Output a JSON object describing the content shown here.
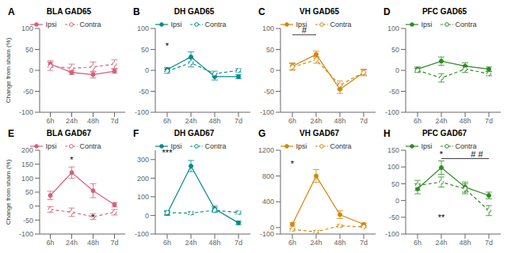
{
  "chart_data": [
    {
      "type": "line",
      "panel_label": "A",
      "title": "BLA GAD65",
      "y_label": "Change from sham (%)",
      "categories": [
        "6h",
        "24h",
        "48h",
        "7d"
      ],
      "ylim": [
        -100,
        100
      ],
      "yticks": [
        -100,
        -50,
        0,
        50,
        100
      ],
      "legend": "top",
      "series": [
        {
          "name": "Ipsi",
          "color": "#d4607a",
          "values": [
            15,
            -5,
            -10,
            -2
          ],
          "errors": [
            8,
            5,
            8,
            5
          ],
          "line_style": "solid",
          "marker": "filled"
        },
        {
          "name": "Contra",
          "color": "#d4607a",
          "values": [
            10,
            5,
            8,
            15
          ],
          "errors": [
            10,
            10,
            12,
            10
          ],
          "line_style": "dashed",
          "marker": "open"
        }
      ],
      "annotations": []
    },
    {
      "type": "line",
      "panel_label": "B",
      "title": "DH GAD65",
      "categories": [
        "6h",
        "24h",
        "48h",
        "7d"
      ],
      "ylim": [
        -100,
        100
      ],
      "yticks": [
        -100,
        -50,
        0,
        50,
        100
      ],
      "legend": "top",
      "series": [
        {
          "name": "Ipsi",
          "color": "#008b8b",
          "values": [
            2,
            32,
            -15,
            -15
          ],
          "errors": [
            5,
            12,
            8,
            5
          ],
          "line_style": "solid",
          "marker": "filled"
        },
        {
          "name": "Contra",
          "color": "#008b8b",
          "values": [
            -2,
            18,
            -8,
            0
          ],
          "errors": [
            5,
            10,
            6,
            4
          ],
          "line_style": "dashed",
          "marker": "open"
        }
      ],
      "annotations": [
        {
          "text": "*",
          "x": 0,
          "y": 48
        }
      ]
    },
    {
      "type": "line",
      "panel_label": "C",
      "title": "VH GAD65",
      "categories": [
        "6h",
        "24h",
        "48h",
        "7d"
      ],
      "ylim": [
        -100,
        100
      ],
      "yticks": [
        -100,
        -50,
        0,
        50,
        100
      ],
      "legend": "top",
      "series": [
        {
          "name": "Ipsi",
          "color": "#d4860a",
          "values": [
            10,
            38,
            -45,
            -5
          ],
          "errors": [
            8,
            8,
            10,
            8
          ],
          "line_style": "solid",
          "marker": "filled"
        },
        {
          "name": "Contra",
          "color": "#d4860a",
          "values": [
            8,
            25,
            -35,
            -5
          ],
          "errors": [
            8,
            8,
            10,
            6
          ],
          "line_style": "dashed",
          "marker": "open"
        }
      ],
      "annotations": [
        {
          "text": "#",
          "x": 0.5,
          "y": 85,
          "bracket": [
            "6h",
            "24h"
          ]
        }
      ]
    },
    {
      "type": "line",
      "panel_label": "D",
      "title": "PFC GAD65",
      "categories": [
        "6h",
        "24h",
        "48h",
        "7d"
      ],
      "ylim": [
        -100,
        100
      ],
      "yticks": [
        -100,
        -50,
        0,
        50,
        100
      ],
      "legend": "top",
      "series": [
        {
          "name": "Ipsi",
          "color": "#2e8b22",
          "values": [
            3,
            22,
            10,
            3
          ],
          "errors": [
            5,
            10,
            8,
            5
          ],
          "line_style": "solid",
          "marker": "filled"
        },
        {
          "name": "Contra",
          "color": "#2e8b22",
          "values": [
            0,
            -18,
            3,
            -8
          ],
          "errors": [
            5,
            10,
            8,
            5
          ],
          "line_style": "dashed",
          "marker": "open"
        }
      ],
      "annotations": []
    },
    {
      "type": "line",
      "panel_label": "E",
      "title": "BLA GAD67",
      "y_label": "Change from sham (%)",
      "categories": [
        "6h",
        "24h",
        "48h",
        "7d"
      ],
      "ylim": [
        -100,
        200
      ],
      "yticks": [
        -100,
        -50,
        0,
        50,
        100,
        150,
        200
      ],
      "legend": "top",
      "series": [
        {
          "name": "Ipsi",
          "color": "#d4607a",
          "values": [
            38,
            120,
            55,
            5
          ],
          "errors": [
            15,
            20,
            25,
            8
          ],
          "line_style": "solid",
          "marker": "filled"
        },
        {
          "name": "Contra",
          "color": "#d4607a",
          "values": [
            -12,
            -22,
            -38,
            -22
          ],
          "errors": [
            10,
            15,
            10,
            10
          ],
          "line_style": "dashed",
          "marker": "open"
        }
      ],
      "annotations": [
        {
          "text": "*",
          "x": 1,
          "y": 150
        },
        {
          "text": "*",
          "x": 2,
          "y": -58
        }
      ]
    },
    {
      "type": "line",
      "panel_label": "F",
      "title": "DH GAD67",
      "categories": [
        "6h",
        "24h",
        "48h",
        "7d"
      ],
      "ylim": [
        -100,
        350
      ],
      "yticks": [
        -100,
        0,
        100,
        200,
        300
      ],
      "legend": "top",
      "series": [
        {
          "name": "Ipsi",
          "color": "#008b8b",
          "values": [
            10,
            265,
            35,
            -40
          ],
          "errors": [
            10,
            30,
            15,
            10
          ],
          "line_style": "solid",
          "marker": "filled"
        },
        {
          "name": "Contra",
          "color": "#008b8b",
          "values": [
            15,
            12,
            28,
            15
          ],
          "errors": [
            10,
            8,
            12,
            8
          ],
          "line_style": "dashed",
          "marker": "open"
        }
      ],
      "annotations": [
        {
          "text": "***",
          "x": 0,
          "y": 310
        }
      ]
    },
    {
      "type": "line",
      "panel_label": "G",
      "title": "VH GAD67",
      "categories": [
        "6h",
        "24h",
        "48h",
        "7d"
      ],
      "ylim": [
        -100,
        1200
      ],
      "yticks": [
        -100,
        0,
        400,
        800,
        1200
      ],
      "legend": "top",
      "series": [
        {
          "name": "Ipsi",
          "color": "#d4860a",
          "values": [
            50,
            800,
            200,
            50
          ],
          "errors": [
            30,
            100,
            60,
            20
          ],
          "line_style": "solid",
          "marker": "filled"
        },
        {
          "name": "Contra",
          "color": "#d4860a",
          "values": [
            -30,
            -65,
            28,
            10
          ],
          "errors": [
            20,
            20,
            20,
            10
          ],
          "line_style": "dashed",
          "marker": "open"
        }
      ],
      "annotations": [
        {
          "text": "*",
          "x": 0,
          "y": 920
        }
      ]
    },
    {
      "type": "line",
      "panel_label": "H",
      "title": "PFC GAD67",
      "categories": [
        "6h",
        "24h",
        "48h",
        "7d"
      ],
      "ylim": [
        -100,
        150
      ],
      "yticks": [
        -100,
        -50,
        0,
        50,
        100,
        150
      ],
      "legend": "top",
      "series": [
        {
          "name": "Ipsi",
          "color": "#2e8b22",
          "values": [
            35,
            98,
            40,
            15
          ],
          "errors": [
            15,
            20,
            15,
            10
          ],
          "line_style": "solid",
          "marker": "filled"
        },
        {
          "name": "Contra",
          "color": "#2e8b22",
          "values": [
            45,
            55,
            35,
            -30
          ],
          "errors": [
            15,
            15,
            15,
            15
          ],
          "line_style": "dashed",
          "marker": "open"
        }
      ],
      "annotations": [
        {
          "text": "*",
          "x": 1,
          "y": 125
        },
        {
          "text": "**",
          "x": 1,
          "y": -65
        },
        {
          "text": "# #",
          "x": 2.5,
          "y": 125,
          "bracket": [
            "24h",
            "7d"
          ]
        }
      ]
    }
  ]
}
